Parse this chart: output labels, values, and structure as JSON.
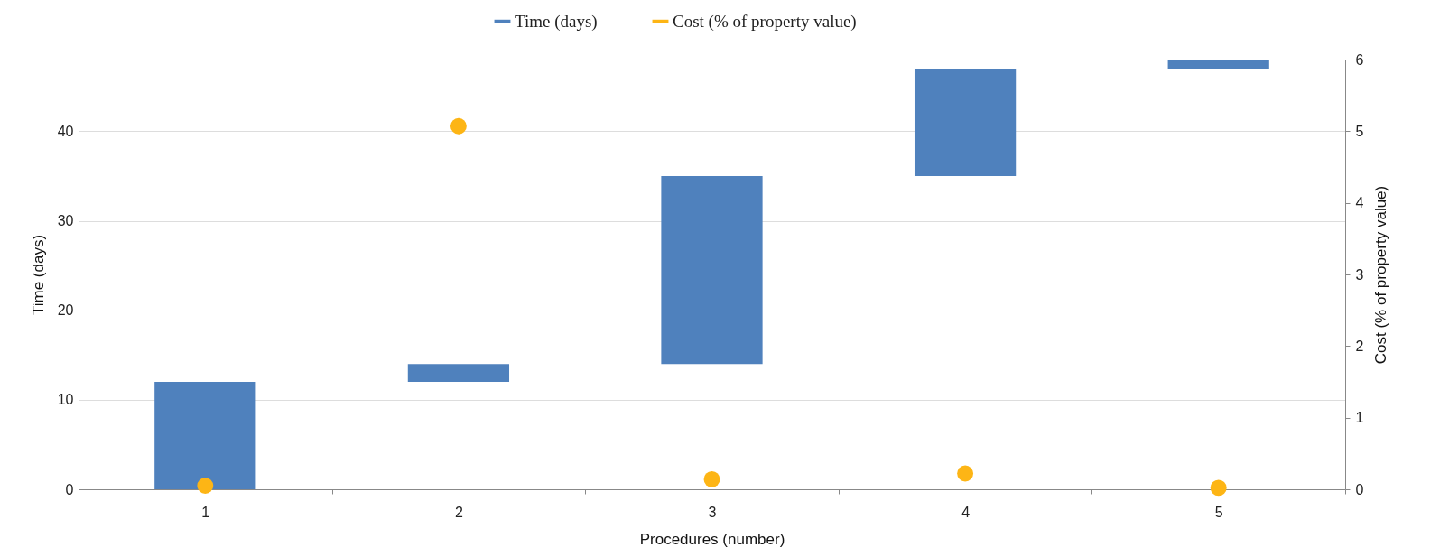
{
  "chart_data": {
    "type": "bar",
    "categories": [
      "1",
      "2",
      "3",
      "4",
      "5"
    ],
    "xlabel": "Procedures (number)",
    "ylabel": "Time (days)",
    "y2label": "Cost (% of property value)",
    "ylim": [
      0,
      48
    ],
    "yticks": [
      0,
      10,
      20,
      30,
      40
    ],
    "y2lim": [
      0,
      6
    ],
    "y2ticks": [
      0,
      1,
      2,
      3,
      4,
      5,
      6
    ],
    "grid": "y",
    "legend": "top",
    "series": [
      {
        "name": "Time (days)",
        "color": "#4f81bd",
        "values": [
          12,
          2,
          21,
          12,
          1
        ],
        "base": [
          0,
          12,
          14,
          35,
          47
        ]
      },
      {
        "name": "Cost (% of property value)",
        "type": "scatter",
        "axis": "y2",
        "marker": "circle",
        "color": "#fdb515",
        "values": [
          0.05,
          5.07,
          0.14,
          0.22,
          0.02
        ]
      }
    ]
  }
}
